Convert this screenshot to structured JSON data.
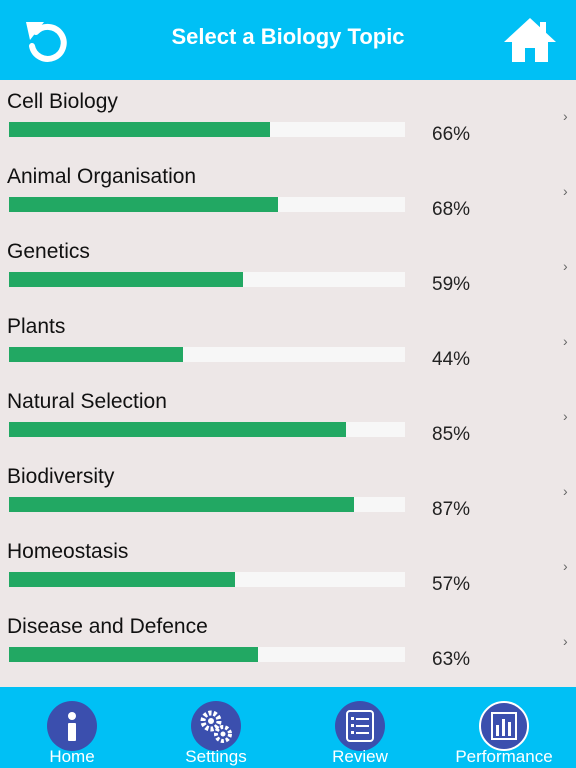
{
  "header": {
    "title": "Select a Biology Topic"
  },
  "topics": [
    {
      "label": "Cell Biology",
      "percent_label": "66%",
      "progress": 0.66
    },
    {
      "label": "Animal Organisation",
      "percent_label": "68%",
      "progress": 0.68
    },
    {
      "label": "Genetics",
      "percent_label": "59%",
      "progress": 0.59
    },
    {
      "label": "Plants",
      "percent_label": "44%",
      "progress": 0.44
    },
    {
      "label": "Natural Selection",
      "percent_label": "85%",
      "progress": 0.85
    },
    {
      "label": "Biodiversity",
      "percent_label": "87%",
      "progress": 0.87
    },
    {
      "label": "Homeostasis",
      "percent_label": "57%",
      "progress": 0.57
    },
    {
      "label": "Disease and Defence",
      "percent_label": "63%",
      "progress": 0.63
    }
  ],
  "chevron": "›",
  "tabs": [
    {
      "label": "Home",
      "icon": "info-icon"
    },
    {
      "label": "Settings",
      "icon": "gears-icon"
    },
    {
      "label": "Review",
      "icon": "list-icon"
    },
    {
      "label": "Performance",
      "icon": "bar-chart-icon",
      "active": true
    }
  ],
  "colors": {
    "accent": "#00c0f5",
    "progress": "#22a863",
    "tab_circle": "#3b4fae",
    "background": "#ede7e7"
  }
}
